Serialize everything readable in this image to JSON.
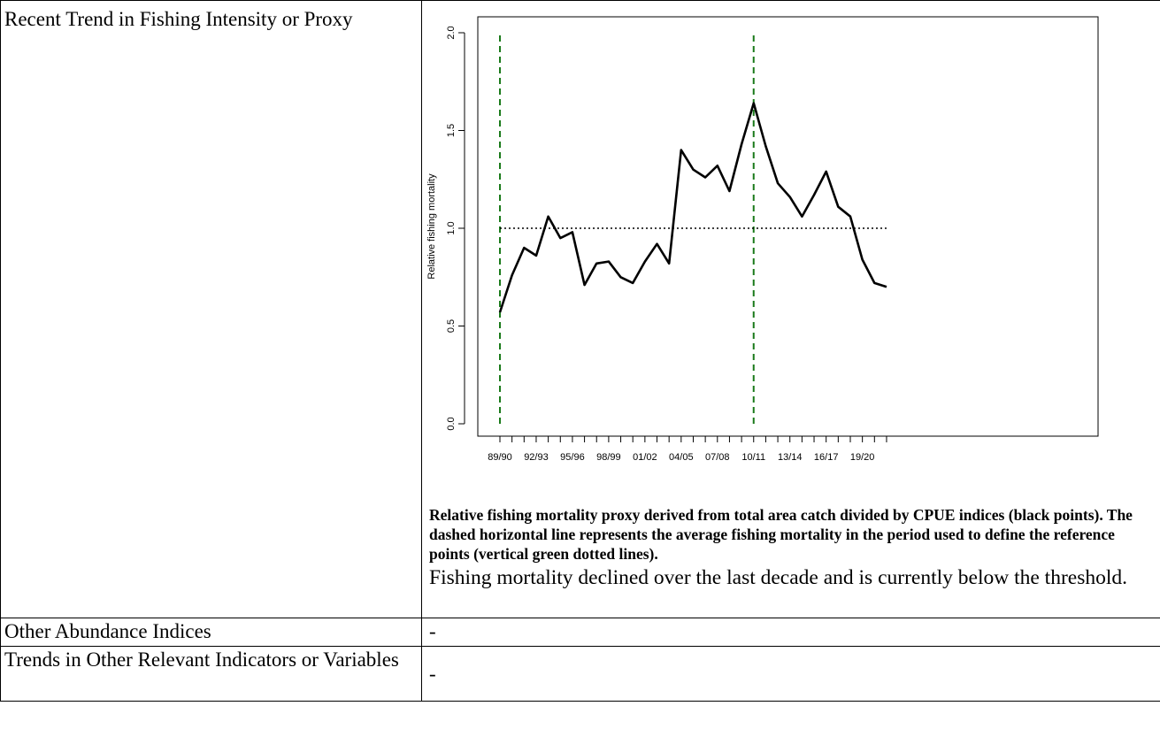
{
  "rows": [
    {
      "label": "Recent Trend in Fishing Intensity or Proxy"
    },
    {
      "label": "Other Abundance Indices",
      "value": "-"
    },
    {
      "label": "Trends in Other Relevant Indicators or Variables",
      "value": "-"
    }
  ],
  "caption": "Relative fishing mortality proxy derived from total area catch divided by CPUE indices (black points). The dashed horizontal line represents the average fishing mortality in the period used to define the reference points (vertical green dotted lines).",
  "finding": "Fishing mortality declined over the last decade and is currently below the threshold.",
  "chart_data": {
    "type": "line",
    "ylabel": "Relative fishing mortality",
    "ylim": [
      0,
      2.0
    ],
    "yticks": [
      0.0,
      0.5,
      1.0,
      1.5,
      2.0
    ],
    "ytick_labels": [
      "0.0",
      "0.5",
      "1.0",
      "1.5",
      "2.0"
    ],
    "x": [
      "89/90",
      "90/91",
      "91/92",
      "92/93",
      "93/94",
      "94/95",
      "95/96",
      "96/97",
      "97/98",
      "98/99",
      "99/00",
      "00/01",
      "01/02",
      "02/03",
      "03/04",
      "04/05",
      "05/06",
      "06/07",
      "07/08",
      "08/09",
      "09/10",
      "10/11",
      "11/12",
      "12/13",
      "13/14",
      "14/15",
      "15/16",
      "16/17",
      "17/18",
      "18/19",
      "19/20",
      "20/21",
      "21/22"
    ],
    "xtick_labels": [
      "89/90",
      "92/93",
      "95/96",
      "98/99",
      "01/02",
      "04/05",
      "07/08",
      "10/11",
      "13/14",
      "16/17",
      "19/20"
    ],
    "values": [
      0.57,
      0.76,
      0.9,
      0.86,
      1.06,
      0.95,
      0.98,
      0.71,
      0.82,
      0.83,
      0.75,
      0.72,
      0.83,
      0.92,
      0.82,
      1.4,
      1.3,
      1.26,
      1.32,
      1.19,
      1.43,
      1.64,
      1.42,
      1.23,
      1.16,
      1.06,
      1.17,
      1.29,
      1.11,
      1.06,
      0.84,
      0.72,
      0.7
    ],
    "reference_line": 1.0,
    "reference_period": [
      "89/90",
      "10/11"
    ],
    "colors": {
      "series": "#000000",
      "reference_period": "#1a7a1a",
      "reference_line": "#000000"
    },
    "grid": false
  }
}
